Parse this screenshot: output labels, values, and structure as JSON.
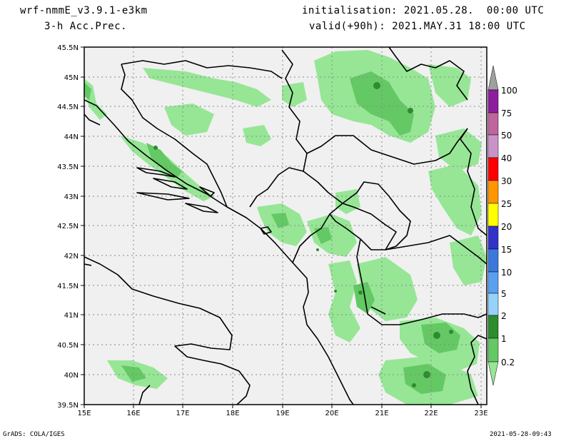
{
  "header": {
    "model": "wrf-nmmE_v3.9.1-e3km",
    "field": "3-h Acc.Prec.",
    "init": "initialisation: 2021.05.28.  00:00 UTC",
    "valid": "valid(+90h): 2021.MAY.31 18:00 UTC"
  },
  "footer": {
    "credit": "GrADS: COLA/IGES",
    "timestamp": "2021-05-28-09:43"
  },
  "axes": {
    "lon_labels": [
      "15E",
      "16E",
      "17E",
      "18E",
      "19E",
      "20E",
      "21E",
      "22E",
      "23E"
    ],
    "lat_labels": [
      "45.5N",
      "45N",
      "44.5N",
      "44N",
      "43.5N",
      "43N",
      "42.5N",
      "42N",
      "41.5N",
      "41N",
      "40.5N",
      "40N",
      "39.5N"
    ]
  },
  "colorbar": {
    "labels": [
      "100",
      "75",
      "50",
      "40",
      "30",
      "25",
      "20",
      "15",
      "10",
      "5",
      "2",
      "1",
      "0.2"
    ],
    "colors": [
      "#a0a0a0",
      "#8c1f9c",
      "#c0649c",
      "#c894c8",
      "#ff0000",
      "#ff9600",
      "#ffff00",
      "#3232c8",
      "#3c78dc",
      "#5aa0f0",
      "#96d2fa",
      "#2d8c2d",
      "#64c864",
      "#96e696"
    ]
  },
  "colors": {
    "land": "#f0f0f0",
    "precip_light": "#96e696",
    "precip_mid": "#64c864",
    "precip_heavy": "#2d8c2d"
  }
}
